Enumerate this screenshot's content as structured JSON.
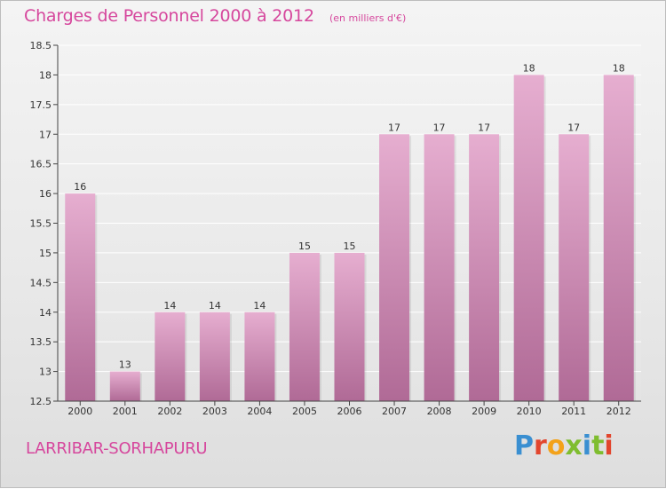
{
  "header": {
    "title": "Charges de Personnel 2000 à 2012",
    "subtitle": "(en milliers d'€)"
  },
  "footer": {
    "place": "LARRIBAR-SORHAPURU",
    "logo_letters": [
      "P",
      "r",
      "o",
      "x",
      "i",
      "t",
      "i"
    ]
  },
  "colors": {
    "text_accent": "#d6479d",
    "bar_top": "#e6aed0",
    "bar_bottom": "#b06a96"
  },
  "chart_data": {
    "type": "bar",
    "title": "Charges de Personnel 2000 à 2012",
    "subtitle": "(en milliers d'€)",
    "xlabel": "",
    "ylabel": "",
    "categories": [
      "2000",
      "2001",
      "2002",
      "2003",
      "2004",
      "2005",
      "2006",
      "2007",
      "2008",
      "2009",
      "2010",
      "2011",
      "2012"
    ],
    "values": [
      16,
      13,
      14,
      14,
      14,
      15,
      15,
      17,
      17,
      17,
      18,
      17,
      18
    ],
    "data_labels": [
      "16",
      "13",
      "14",
      "14",
      "14",
      "15",
      "15",
      "17",
      "17",
      "17",
      "18",
      "17",
      "18"
    ],
    "ylim": [
      12.5,
      18.5
    ],
    "yticks": [
      "12.5",
      "13",
      "13.5",
      "14",
      "14.5",
      "15",
      "15.5",
      "16",
      "16.5",
      "17",
      "17.5",
      "18",
      "18.5"
    ],
    "grid": true
  }
}
